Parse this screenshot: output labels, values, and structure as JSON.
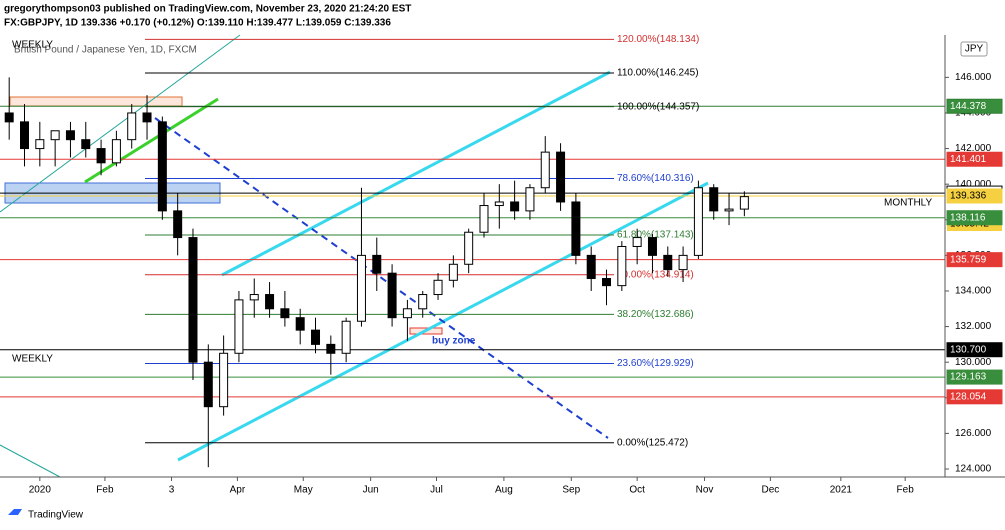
{
  "chart_data": {
    "type": "candlestick",
    "header": "gregorythompson03 published on TradingView.com, November 23, 2020 21:24:20 EST",
    "symbol_line": "FX:GBPJPY, 1D 139.336 +0.170 (+0.12%) O:139.110 H:139.477 L:139.059 C:139.336",
    "watermark": "British Pound / Japanese Yen, 1D, FXCM",
    "currency": "JPY",
    "annotations": [
      "WEEKLY",
      "WEEKLY",
      "MONTHLY",
      "buy zone"
    ],
    "countdown": "19:35:42",
    "footer": "TradingView",
    "x": [
      -2,
      -1,
      0,
      1,
      2,
      3,
      4,
      5,
      6,
      7,
      8,
      9,
      10,
      11,
      12,
      13,
      14,
      15,
      16,
      17,
      18,
      19,
      20,
      21,
      22,
      23,
      24,
      25,
      26,
      27,
      28,
      29,
      30,
      31,
      32,
      33,
      34,
      35,
      36,
      37,
      38,
      39,
      40,
      41,
      42,
      43,
      44,
      45,
      46
    ],
    "open": [
      144,
      143.5,
      142,
      142.5,
      143,
      142.5,
      142,
      141.2,
      142.5,
      144,
      143.5,
      138.5,
      137,
      130,
      127.5,
      130.5,
      133.5,
      133.8,
      133,
      132.5,
      131.8,
      131,
      130.5,
      132.3,
      136,
      135,
      132.5,
      133,
      133.8,
      134.6,
      135.5,
      137.3,
      138.8,
      139,
      138.5,
      139.8,
      141.8,
      139,
      136,
      134.7,
      134.3,
      136.5,
      137,
      136,
      135.2,
      136,
      139.8,
      138.5,
      138.6
    ],
    "high": [
      146,
      144.5,
      143.5,
      143,
      143.5,
      143.5,
      142.5,
      143,
      144.5,
      145,
      143.8,
      139.5,
      137.5,
      131,
      131.5,
      134,
      134.7,
      134.5,
      134,
      133,
      132.5,
      131.5,
      132.5,
      139.8,
      137,
      135.5,
      133.5,
      134,
      135,
      136,
      137.5,
      139.5,
      140,
      140.2,
      140,
      142.7,
      142.3,
      139.5,
      136.5,
      135.2,
      136.8,
      137.5,
      137.2,
      136.5,
      136.5,
      140.2,
      140,
      139.5,
      139.6
    ],
    "low": [
      142.5,
      141,
      141,
      141,
      141.5,
      141.5,
      140.5,
      141,
      142,
      142.5,
      138,
      136,
      129,
      124.1,
      127,
      130,
      132.5,
      132.5,
      132,
      131,
      130.5,
      129.3,
      130,
      132,
      134,
      132,
      131.2,
      132.5,
      133.5,
      134.2,
      135,
      137,
      137.5,
      138,
      138,
      139.5,
      138.5,
      135.5,
      134,
      133.2,
      134,
      135.5,
      135,
      134.8,
      134.5,
      135.8,
      138,
      137.7,
      138.2
    ],
    "close": [
      143.5,
      142,
      142.5,
      143,
      142.5,
      142,
      141.2,
      142.5,
      144,
      143.5,
      138.5,
      137,
      130,
      127.5,
      130.5,
      133.5,
      133.8,
      133,
      132.5,
      131.8,
      131,
      130.5,
      132.3,
      136,
      135,
      132.5,
      133,
      133.8,
      134.6,
      135.5,
      137.3,
      138.8,
      139,
      138.5,
      139.8,
      141.8,
      139,
      136,
      134.7,
      134.3,
      136.5,
      137,
      136,
      135.2,
      136,
      139.8,
      138.5,
      138.6,
      139.3
    ],
    "xlim": [
      -2.6,
      59.1
    ],
    "xticks": [
      {
        "value": 0,
        "label": "2020"
      },
      {
        "value": 4.25,
        "label": "Feb"
      },
      {
        "value": 8.6,
        "label": "3"
      },
      {
        "value": 12.9,
        "label": "Apr"
      },
      {
        "value": 17.2,
        "label": "May"
      },
      {
        "value": 21.6,
        "label": "Jun"
      },
      {
        "value": 25.9,
        "label": "Jul"
      },
      {
        "value": 30.3,
        "label": "Aug"
      },
      {
        "value": 34.7,
        "label": "Sep"
      },
      {
        "value": 39,
        "label": "Oct"
      },
      {
        "value": 43.4,
        "label": "Nov"
      },
      {
        "value": 47.7,
        "label": "Dec"
      },
      {
        "value": 52.3,
        "label": "2021"
      },
      {
        "value": 56.5,
        "label": "Feb"
      }
    ],
    "ylim": [
      123.55,
      148.38
    ],
    "yticks": [
      {
        "value": 124,
        "label": "124.000"
      },
      {
        "value": 126,
        "label": "126.000"
      },
      {
        "value": 128,
        "label": "128.000"
      },
      {
        "value": 130,
        "label": "130.000"
      },
      {
        "value": 132,
        "label": "132.000"
      },
      {
        "value": 134,
        "label": "134.000"
      },
      {
        "value": 136,
        "label": "136.000"
      },
      {
        "value": 138,
        "label": "138.000"
      },
      {
        "value": 140,
        "label": "140.000"
      },
      {
        "value": 142,
        "label": "142.000"
      },
      {
        "value": 144,
        "label": "144.000"
      },
      {
        "value": 146,
        "label": "146.000"
      }
    ],
    "levels": [
      {
        "value": 144.378,
        "label": "144.378",
        "color": "#2e7d32",
        "badge": "#388e3c"
      },
      {
        "value": 141.401,
        "label": "141.401",
        "color": "#e53935",
        "badge": "#e53935"
      },
      {
        "value": 139.5,
        "label": "139.500",
        "color": "#000000",
        "badge": "#ffffff"
      },
      {
        "value": 139.336,
        "label": "139.336",
        "color": "#f5d142",
        "badge": "#f5d142"
      },
      {
        "value": 138.116,
        "label": "138.116",
        "color": "#388e3c",
        "badge": "#388e3c"
      },
      {
        "value": 135.759,
        "label": "135.759",
        "color": "#e53935",
        "badge": "#e53935"
      },
      {
        "value": 130.7,
        "label": "130.700",
        "color": "#000000",
        "badge": "#000000"
      },
      {
        "value": 129.163,
        "label": "129.163",
        "color": "#388e3c",
        "badge": "#388e3c"
      },
      {
        "value": 128.054,
        "label": "128.054",
        "color": "#e53935",
        "badge": "#e53935"
      }
    ],
    "fib": [
      {
        "value": 125.472,
        "label": "0.00%(125.472)",
        "color": "#000000"
      },
      {
        "value": 129.929,
        "label": "23.60%(129.929)",
        "color": "#1e3fd0"
      },
      {
        "value": 132.686,
        "label": "38.20%(132.686)",
        "color": "#2e7d32"
      },
      {
        "value": 134.914,
        "label": "50.00%(134.914)",
        "color": "#d32f2f"
      },
      {
        "value": 137.143,
        "label": "61.80%(137.143)",
        "color": "#2e7d32"
      },
      {
        "value": 140.316,
        "label": "78.60%(140.316)",
        "color": "#1e3fd0"
      },
      {
        "value": 144.357,
        "label": "100.00%(144.357)",
        "color": "#000000"
      },
      {
        "value": 146.245,
        "label": "110.00%(146.245)",
        "color": "#000000"
      },
      {
        "value": 148.134,
        "label": "120.00%(148.134)",
        "color": "#d32f2f"
      }
    ]
  }
}
